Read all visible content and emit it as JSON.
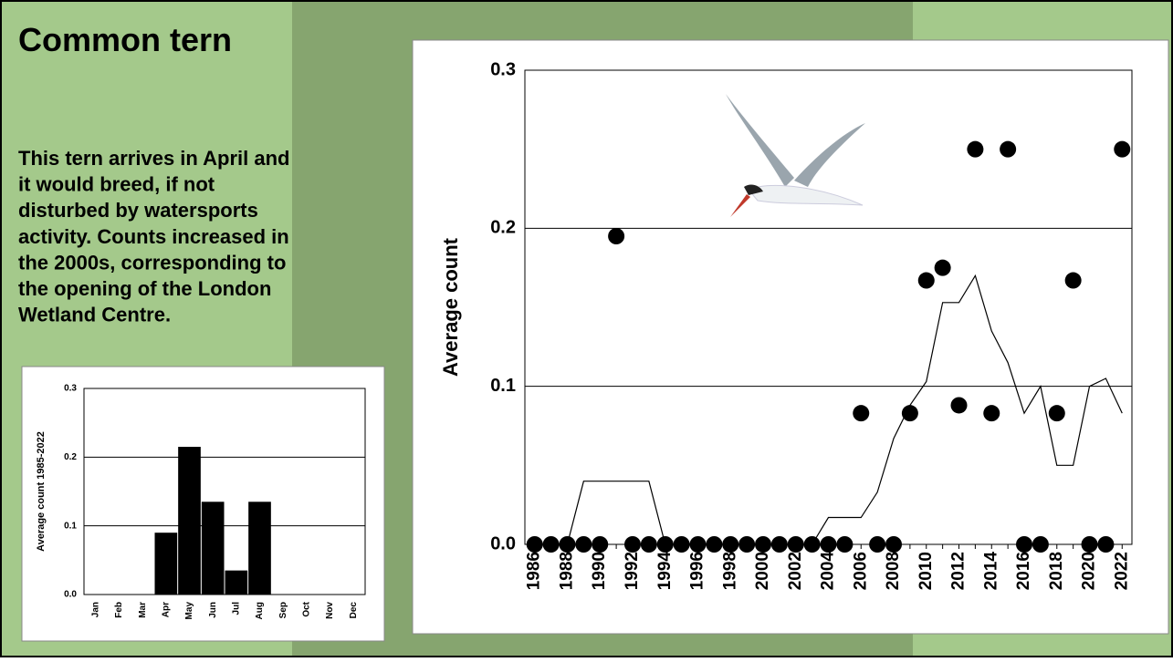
{
  "slide": {
    "title": "Common tern",
    "text_lines": [
      "This tern arrives in April and",
      "it would breed, if not",
      "disturbed by watersports",
      "activity. Counts increased in",
      "the 2000s, corresponding to",
      "the opening of the London",
      "Wetland Centre."
    ]
  },
  "chart_data": [
    {
      "type": "bar",
      "ylabel": "Average count 1985-2022",
      "categories": [
        "Jan",
        "Feb",
        "Mar",
        "Apr",
        "May",
        "Jun",
        "Jul",
        "Aug",
        "Sep",
        "Oct",
        "Nov",
        "Dec"
      ],
      "values": [
        0,
        0,
        0,
        0.09,
        0.215,
        0.135,
        0.035,
        0.135,
        0,
        0,
        0,
        0
      ],
      "color": "#000000",
      "ylim": [
        0,
        0.3
      ],
      "yticks": [
        {
          "value": 0,
          "label": "0.0"
        },
        0.1,
        0.2,
        0.3
      ],
      "grid": true
    },
    {
      "type": "line",
      "ylabel": "Average count",
      "x": [
        1986,
        1987,
        1988,
        1989,
        1990,
        1991,
        1992,
        1993,
        1994,
        1995,
        1996,
        1997,
        1998,
        1999,
        2000,
        2001,
        2002,
        2003,
        2004,
        2005,
        2006,
        2007,
        2008,
        2009,
        2010,
        2011,
        2012,
        2013,
        2014,
        2015,
        2016,
        2017,
        2018,
        2019,
        2020,
        2021,
        2022
      ],
      "series": [
        {
          "style": "markers",
          "color": "#000000",
          "values": [
            0,
            0,
            0,
            0,
            0,
            0.195,
            0,
            0,
            0,
            0,
            0,
            0,
            0,
            0,
            0,
            0,
            0,
            0,
            0,
            0,
            0.083,
            0,
            0,
            0.083,
            0.167,
            0.175,
            0.088,
            0.25,
            0.083,
            0.25,
            0,
            0,
            0.083,
            0.167,
            0,
            0,
            0.25
          ]
        },
        {
          "style": "line",
          "color": "#000000",
          "values": [
            0,
            0,
            0,
            0.04,
            0.04,
            0.04,
            0.04,
            0.04,
            0,
            0,
            0,
            0,
            0,
            0,
            0,
            0,
            0,
            0,
            0.017,
            0.017,
            0.017,
            0.033,
            0.067,
            0.088,
            0.103,
            0.153,
            0.153,
            0.17,
            0.135,
            0.115,
            0.083,
            0.1,
            0.05,
            0.05,
            0.1,
            0.105,
            0.083
          ]
        }
      ],
      "xlim": [
        1985.4,
        2022.6
      ],
      "ylim": [
        0,
        0.3
      ],
      "xticks": [
        1986,
        1988,
        1990,
        1992,
        1994,
        1996,
        1998,
        2000,
        2002,
        2004,
        2006,
        2008,
        2010,
        2012,
        2014,
        2016,
        2018,
        2020,
        2022
      ],
      "yticks": [
        {
          "value": 0,
          "label": "0.0"
        },
        0.1,
        0.2,
        0.3
      ],
      "grid": true
    }
  ]
}
